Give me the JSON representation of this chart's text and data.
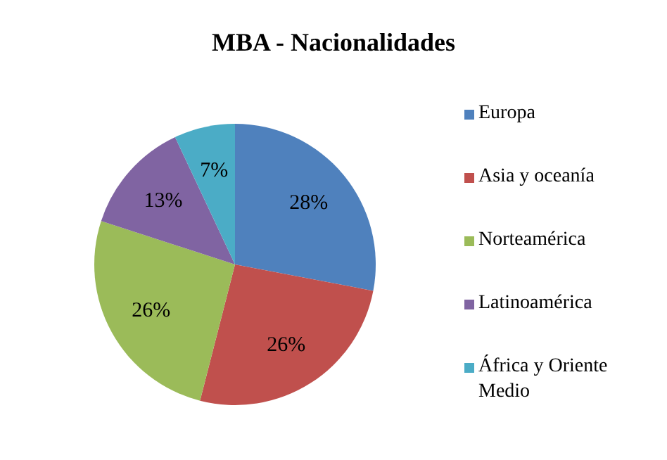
{
  "chart_data": {
    "type": "pie",
    "title": "MBA - Nacionalidades",
    "categories": [
      "Europa",
      "Asia y oceanía",
      "Norteamérica",
      "Latinoamérica",
      "África y Oriente Medio"
    ],
    "values": [
      28,
      26,
      26,
      13,
      7
    ],
    "value_labels": [
      "28%",
      "26%",
      "26%",
      "13%",
      "7%"
    ],
    "colors": [
      "#4f81bd",
      "#c0504d",
      "#9bbb59",
      "#8064a2",
      "#4bacc6"
    ],
    "legend": "right"
  }
}
